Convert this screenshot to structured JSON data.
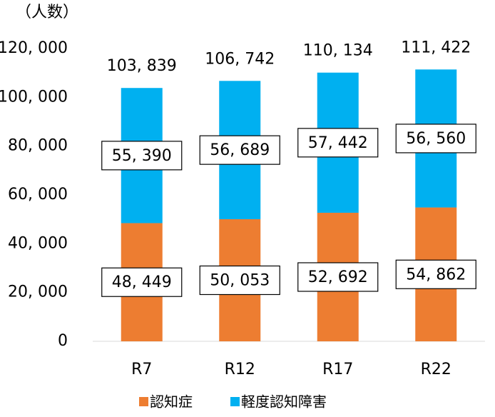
{
  "chart_data": {
    "type": "stacked_bar",
    "y_axis_label": "（人数）",
    "categories": [
      "R7",
      "R12",
      "R17",
      "R22"
    ],
    "series": [
      {
        "name": "認知症",
        "color": "#ED7D31",
        "values": [
          48449,
          50053,
          52692,
          54862
        ],
        "value_labels": [
          "48, 449",
          "50, 053",
          "52, 692",
          "54, 862"
        ]
      },
      {
        "name": "軽度認知障害",
        "color": "#00B0F0",
        "values": [
          55390,
          56689,
          57442,
          56560
        ],
        "value_labels": [
          "55, 390",
          "56, 689",
          "57, 442",
          "56, 560"
        ]
      }
    ],
    "totals": [
      103839,
      106742,
      110134,
      111422
    ],
    "totals_labels": [
      "103, 839",
      "106, 742",
      "110, 134",
      "111, 422"
    ],
    "ylim": [
      0,
      120000
    ],
    "yticks": [
      0,
      {
        "value": 20000,
        "label": "20, 000"
      },
      {
        "value": 40000,
        "label": "40, 000"
      },
      {
        "value": 60000,
        "label": "60, 000"
      },
      {
        "value": 80000,
        "label": "80, 000"
      },
      {
        "value": 100000,
        "label": "100, 000"
      },
      {
        "value": 120000,
        "label": "120, 000"
      }
    ],
    "legend": "bottom"
  }
}
